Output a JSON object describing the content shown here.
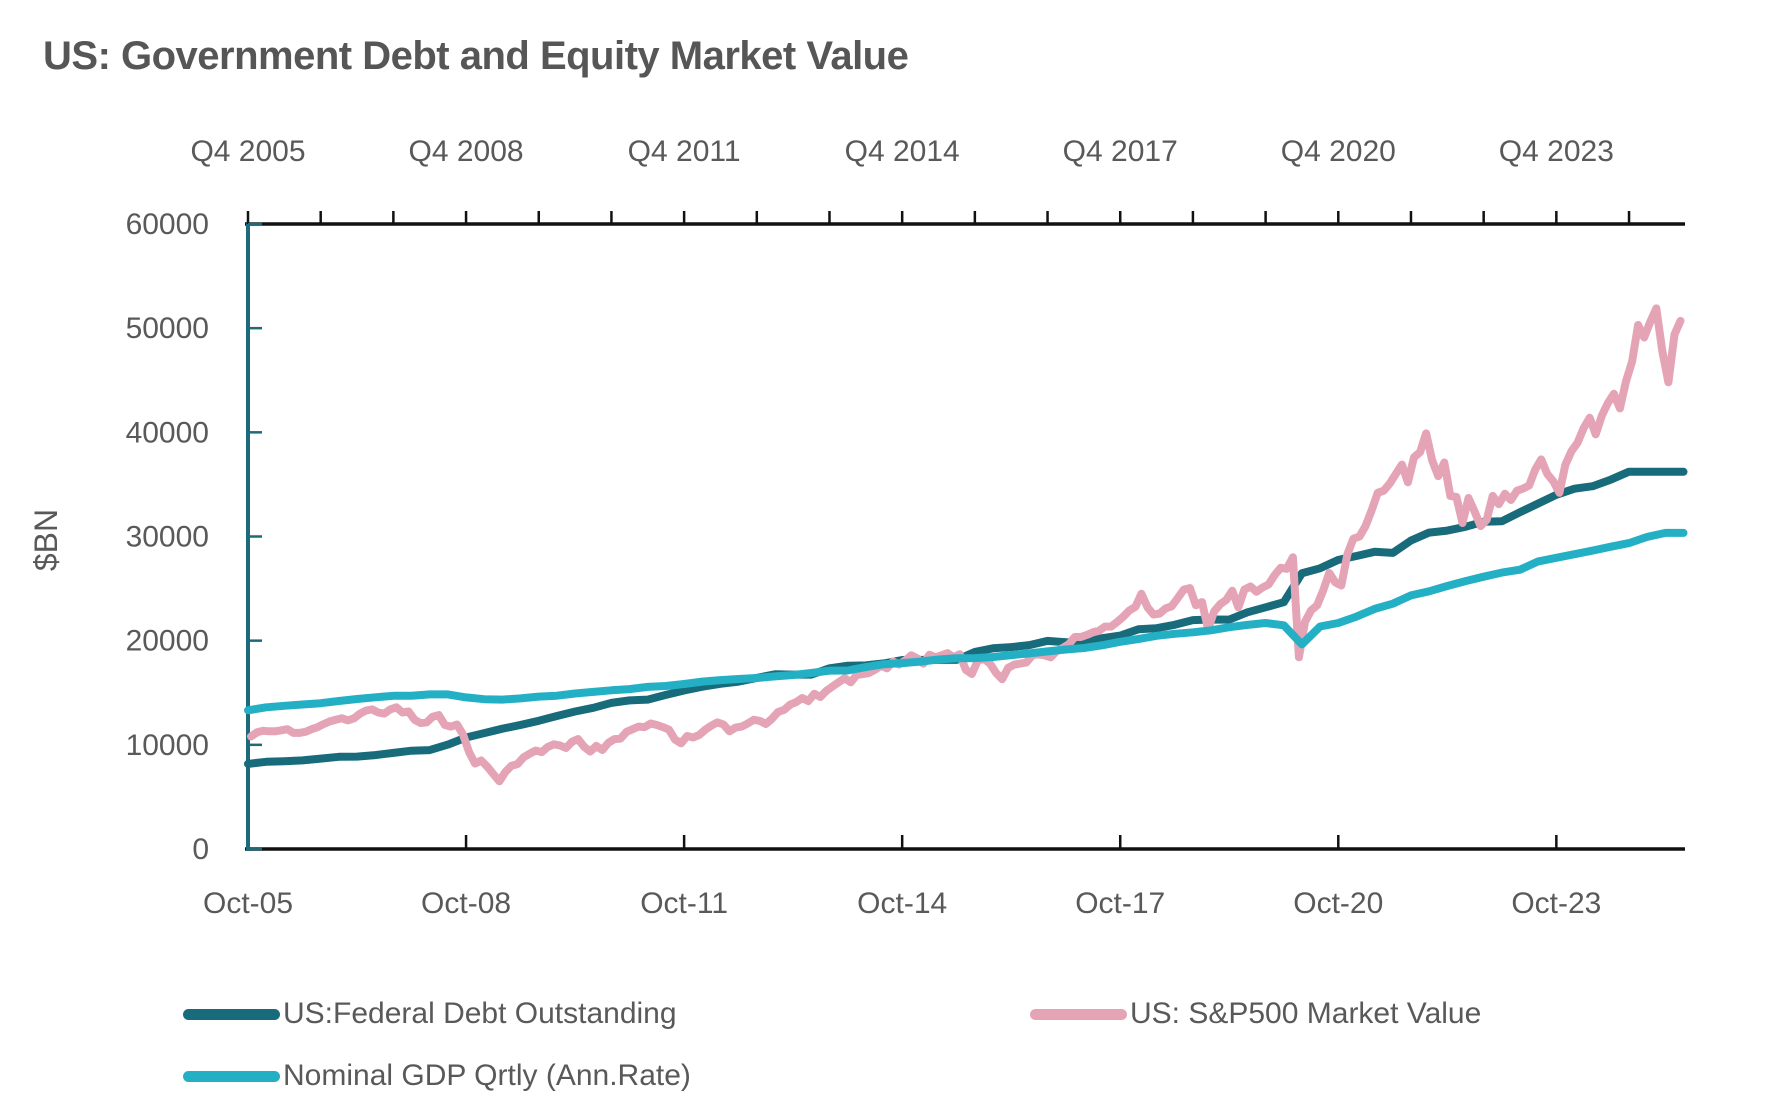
{
  "title": "US: Government Debt and Equity Market Value",
  "colors": {
    "debt": "#176B7B",
    "sp500": "#E5A3B6",
    "gdp": "#24B0C4",
    "axis_black": "#111111",
    "y_axis_teal": "#1B6B7A",
    "tick_text": "#595959",
    "title_text": "#565656"
  },
  "legend": {
    "items": [
      {
        "label": "US:Federal Debt Outstanding",
        "color": "#176B7B"
      },
      {
        "label": "US: S&P500 Market Value",
        "color": "#E5A3B6"
      },
      {
        "label": "Nominal GDP Qrtly (Ann.Rate)",
        "color": "#24B0C4"
      }
    ]
  },
  "chart_data": {
    "type": "line",
    "title": "US: Government Debt and Equity Market Value",
    "xlabel": "",
    "ylabel": "$BN",
    "ylim": [
      0,
      60000
    ],
    "ytick_interval": 10000,
    "y_tick_labels": [
      "0",
      "10000",
      "20000",
      "30000",
      "40000",
      "50000",
      "60000"
    ],
    "grid": false,
    "legend_position": "bottom",
    "x_range_years": [
      2005.75,
      2025.52
    ],
    "top_tick_interval_years": 1,
    "label_years": [
      2005.75,
      2008.75,
      2011.75,
      2014.75,
      2017.75,
      2020.75,
      2023.75
    ],
    "top_axis_labels": [
      "Q4 2005",
      "Q4 2008",
      "Q4 2011",
      "Q4 2014",
      "Q4 2017",
      "Q4 2020",
      "Q4 2023"
    ],
    "bottom_axis_labels": [
      "Oct-05",
      "Oct-08",
      "Oct-11",
      "Oct-14",
      "Oct-17",
      "Oct-20",
      "Oct-23"
    ],
    "series": [
      {
        "name": "US:Federal Debt Outstanding",
        "color": "#176B7B",
        "x_start": 2005.75,
        "x_step": 0.25,
        "y": [
          8170,
          8370,
          8420,
          8510,
          8680,
          8850,
          8870,
          9010,
          9230,
          9440,
          9490,
          10020,
          10700,
          11130,
          11550,
          11910,
          12310,
          12770,
          13200,
          13560,
          14030,
          14270,
          14340,
          14790,
          15220,
          15580,
          15860,
          16070,
          16430,
          16770,
          16740,
          16740,
          17350,
          17600,
          17630,
          17820,
          18140,
          18150,
          18150,
          18150,
          18920,
          19270,
          19380,
          19570,
          19980,
          19850,
          19840,
          20240,
          20490,
          21090,
          21200,
          21520,
          21970,
          22030,
          22020,
          22720,
          23200,
          23690,
          26480,
          26950,
          27750,
          28130,
          28530,
          28430,
          29620,
          30370,
          30570,
          30930,
          31420,
          31460,
          32330,
          33170,
          34000,
          34590,
          34830,
          35460,
          36220,
          36220,
          36210,
          36210
        ]
      },
      {
        "name": "US: S&P500 Market Value",
        "color": "#E5A3B6",
        "x_start": 2005.7917,
        "x_step": 0.0833333,
        "y": [
          10800,
          11200,
          11350,
          11300,
          11300,
          11400,
          11500,
          11150,
          11150,
          11250,
          11500,
          11700,
          12000,
          12250,
          12400,
          12550,
          12350,
          12550,
          13000,
          13300,
          13400,
          13100,
          13000,
          13400,
          13600,
          13100,
          13200,
          12400,
          12100,
          12150,
          12700,
          12850,
          11900,
          11750,
          11950,
          11000,
          9300,
          8200,
          8500,
          7900,
          7200,
          6500,
          7400,
          8000,
          8150,
          8800,
          9150,
          9450,
          9300,
          9800,
          10050,
          9950,
          9700,
          10300,
          10550,
          9800,
          9350,
          9900,
          9500,
          10200,
          10550,
          10600,
          11250,
          11500,
          11750,
          11700,
          12050,
          11900,
          11700,
          11450,
          10500,
          10150,
          10850,
          10700,
          10950,
          11450,
          11850,
          12150,
          11950,
          11300,
          11650,
          11750,
          12050,
          12400,
          12300,
          12000,
          12500,
          13150,
          13350,
          13850,
          14100,
          14500,
          14200,
          14900,
          14600,
          15200,
          15600,
          16000,
          16400,
          16000,
          16700,
          16800,
          16900,
          17200,
          17600,
          17350,
          18000,
          17700,
          18100,
          18600,
          18300,
          17800,
          18650,
          18400,
          18600,
          18800,
          18400,
          18700,
          17200,
          16800,
          18100,
          18250,
          17800,
          16900,
          16300,
          17400,
          17700,
          17800,
          17900,
          18600,
          18700,
          18600,
          18400,
          19000,
          19300,
          19650,
          20350,
          20350,
          20550,
          20800,
          20950,
          21350,
          21350,
          21800,
          22300,
          22900,
          23250,
          24500,
          23200,
          22500,
          22600,
          23100,
          23300,
          24100,
          24900,
          25050,
          23400,
          23700,
          21100,
          22800,
          23500,
          23900,
          24800,
          23200,
          24900,
          25200,
          24700,
          25100,
          25400,
          26300,
          27000,
          26900,
          28000,
          18400,
          21800,
          22900,
          23400,
          24800,
          26500,
          25600,
          25300,
          28300,
          29800,
          30000,
          31000,
          32500,
          34200,
          34400,
          35100,
          36000,
          36900,
          35200,
          37600,
          38100,
          39900,
          37300,
          35800,
          37100,
          33900,
          33800,
          31300,
          33700,
          32400,
          31000,
          31600,
          33900,
          33100,
          34100,
          33500,
          34400,
          34600,
          34900,
          36400,
          37400,
          36000,
          35300,
          34200,
          36900,
          38200,
          39000,
          40400,
          41400,
          39800,
          41600,
          42800,
          43700,
          42300,
          44900,
          46800,
          50300,
          49100,
          50600,
          51900,
          47800,
          44800,
          49400,
          50700
        ]
      },
      {
        "name": "Nominal GDP Qrtly (Ann.Rate)",
        "color": "#24B0C4",
        "x_start": 2005.75,
        "x_step": 0.25,
        "y": [
          13320,
          13600,
          13750,
          13870,
          14000,
          14210,
          14400,
          14560,
          14710,
          14710,
          14840,
          14840,
          14550,
          14380,
          14340,
          14460,
          14630,
          14720,
          14930,
          15080,
          15240,
          15350,
          15560,
          15650,
          15840,
          16070,
          16210,
          16320,
          16420,
          16570,
          16700,
          16900,
          17130,
          17140,
          17460,
          17740,
          17850,
          17990,
          18190,
          18310,
          18330,
          18430,
          18610,
          18780,
          18970,
          19150,
          19300,
          19560,
          19890,
          20160,
          20470,
          20660,
          20800,
          21000,
          21290,
          21510,
          21700,
          21480,
          19640,
          21360,
          21700,
          22310,
          23050,
          23550,
          24350,
          24740,
          25250,
          25720,
          26140,
          26530,
          26810,
          27610,
          27960,
          28300,
          28650,
          29020,
          29370,
          29960,
          30350,
          30350
        ]
      }
    ]
  }
}
